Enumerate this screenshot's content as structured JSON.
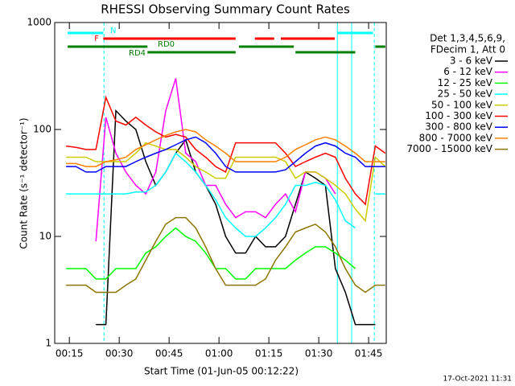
{
  "chart_data": {
    "type": "line",
    "title": "RHESSI Observing Summary Count Rates",
    "xlabel": "Start Time (01-Jun-05 00:12:22)",
    "ylabel": "Count Rate (s⁻¹ detector⁻¹)",
    "legend_header": [
      "Det 1,3,4,5,6,9,",
      "FDecim 1, Att 0"
    ],
    "footer": "17-Oct-2021 11:31",
    "log_y": true,
    "legend": "right",
    "xlim": [
      10.6,
      110.3
    ],
    "xticks": [
      {
        "value": 15,
        "label": "00:15"
      },
      {
        "value": 30,
        "label": "00:30"
      },
      {
        "value": 45,
        "label": "00:45"
      },
      {
        "value": 60,
        "label": "01:00"
      },
      {
        "value": 75,
        "label": "01:15"
      },
      {
        "value": 90,
        "label": "01:30"
      },
      {
        "value": 105,
        "label": "01:45"
      }
    ],
    "ylim": [
      1,
      1000
    ],
    "yticks": [
      1,
      10,
      100,
      1000
    ],
    "x": [
      14,
      17,
      20,
      23,
      26,
      29,
      32,
      35,
      38,
      41,
      44,
      47,
      50,
      53,
      56,
      59,
      62,
      65,
      68,
      71,
      74,
      77,
      80,
      83,
      86,
      89,
      92,
      95,
      98,
      101,
      104,
      107,
      110
    ],
    "series": [
      {
        "name": "3 - 6 keV",
        "color": "#000000",
        "values": [
          null,
          null,
          null,
          1.5,
          1.5,
          150,
          120,
          100,
          50,
          30,
          40,
          60,
          80,
          40,
          30,
          20,
          10,
          7,
          7,
          10,
          8,
          8,
          10,
          20,
          40,
          35,
          30,
          5,
          3,
          1.5,
          1.5,
          1.5,
          null
        ]
      },
      {
        "name": "6 - 12 keV",
        "color": "#ff00ff",
        "values": [
          null,
          null,
          null,
          9,
          130,
          60,
          40,
          30,
          25,
          40,
          150,
          300,
          60,
          50,
          30,
          30,
          20,
          15,
          17,
          17,
          15,
          20,
          25,
          17,
          40,
          40,
          35,
          25,
          null,
          null,
          null,
          null,
          null
        ]
      },
      {
        "name": "12 - 25 keV",
        "color": "#00ff00",
        "values": [
          5,
          5,
          5,
          4,
          4,
          5,
          5,
          5,
          7,
          8,
          10,
          12,
          10,
          9,
          7,
          5,
          5,
          4,
          4,
          5,
          5,
          5,
          5,
          6,
          7,
          8,
          8,
          7,
          6,
          5,
          null,
          null,
          5
        ]
      },
      {
        "name": "25 - 50 keV",
        "color": "#00ffff",
        "values": [
          25,
          25,
          25,
          25,
          25,
          25,
          25,
          26,
          26,
          30,
          40,
          60,
          50,
          40,
          30,
          22,
          15,
          12,
          10,
          10,
          12,
          15,
          20,
          30,
          30,
          32,
          30,
          22,
          14,
          12,
          null,
          25,
          25
        ]
      },
      {
        "name": "50 - 100 keV",
        "color": "#cccc00",
        "values": [
          55,
          55,
          55,
          50,
          50,
          50,
          50,
          60,
          75,
          70,
          65,
          65,
          55,
          45,
          40,
          35,
          35,
          55,
          55,
          55,
          55,
          55,
          50,
          35,
          40,
          40,
          35,
          30,
          25,
          18,
          14,
          55,
          45
        ]
      },
      {
        "name": "100 - 300 keV",
        "color": "#ff0000",
        "values": [
          70,
          68,
          65,
          65,
          200,
          120,
          110,
          130,
          110,
          95,
          85,
          90,
          85,
          65,
          55,
          45,
          40,
          75,
          75,
          75,
          75,
          75,
          60,
          45,
          50,
          55,
          60,
          55,
          35,
          25,
          20,
          70,
          60
        ]
      },
      {
        "name": "300 - 800 keV",
        "color": "#0000ff",
        "values": [
          45,
          45,
          40,
          40,
          45,
          45,
          45,
          50,
          55,
          60,
          65,
          72,
          80,
          85,
          75,
          60,
          45,
          40,
          40,
          40,
          40,
          40,
          42,
          50,
          60,
          70,
          75,
          70,
          60,
          55,
          45,
          45,
          45
        ]
      },
      {
        "name": "800 - 7000 keV",
        "color": "#ff8000",
        "values": [
          48,
          48,
          45,
          45,
          50,
          52,
          55,
          65,
          72,
          80,
          88,
          95,
          100,
          95,
          80,
          70,
          60,
          50,
          50,
          50,
          50,
          50,
          55,
          65,
          72,
          80,
          85,
          80,
          70,
          60,
          50,
          50,
          50
        ]
      },
      {
        "name": "7000 - 15000 keV",
        "color": "#8b7500",
        "values": [
          3.5,
          3.5,
          3.5,
          3,
          3,
          3,
          3.5,
          4,
          6,
          9,
          13,
          15,
          15,
          12,
          8,
          5,
          3.5,
          3.5,
          3.5,
          3.5,
          4,
          6,
          8,
          11,
          12,
          13,
          11,
          8,
          5,
          3.5,
          3,
          3.5,
          3.5
        ]
      }
    ],
    "flags": [
      {
        "label": "N",
        "color": "#00ffff",
        "intervals": [
          [
            14.5,
            25.2
          ],
          [
            95.6,
            106.3
          ]
        ]
      },
      {
        "label": "F",
        "color": "#ff0000",
        "intervals": [
          [
            25.2,
            65
          ],
          [
            70.8,
            76.6
          ],
          [
            78.6,
            94.8
          ]
        ]
      },
      {
        "label": "RD0",
        "color": "#008000",
        "intervals": [
          [
            14.5,
            38.5
          ],
          [
            66,
            82.5
          ],
          [
            107,
            110
          ]
        ]
      },
      {
        "label": "RD4",
        "color": "#008000",
        "intervals": [
          [
            38.5,
            65
          ],
          [
            83,
            101
          ]
        ]
      }
    ],
    "vlines": [
      {
        "value": 25.4,
        "dashed": true
      },
      {
        "value": 95.6,
        "dashed": false
      },
      {
        "value": 99.9,
        "dashed": false
      },
      {
        "value": 106.7,
        "dashed": true
      }
    ],
    "vline_color": "#00ffff"
  }
}
